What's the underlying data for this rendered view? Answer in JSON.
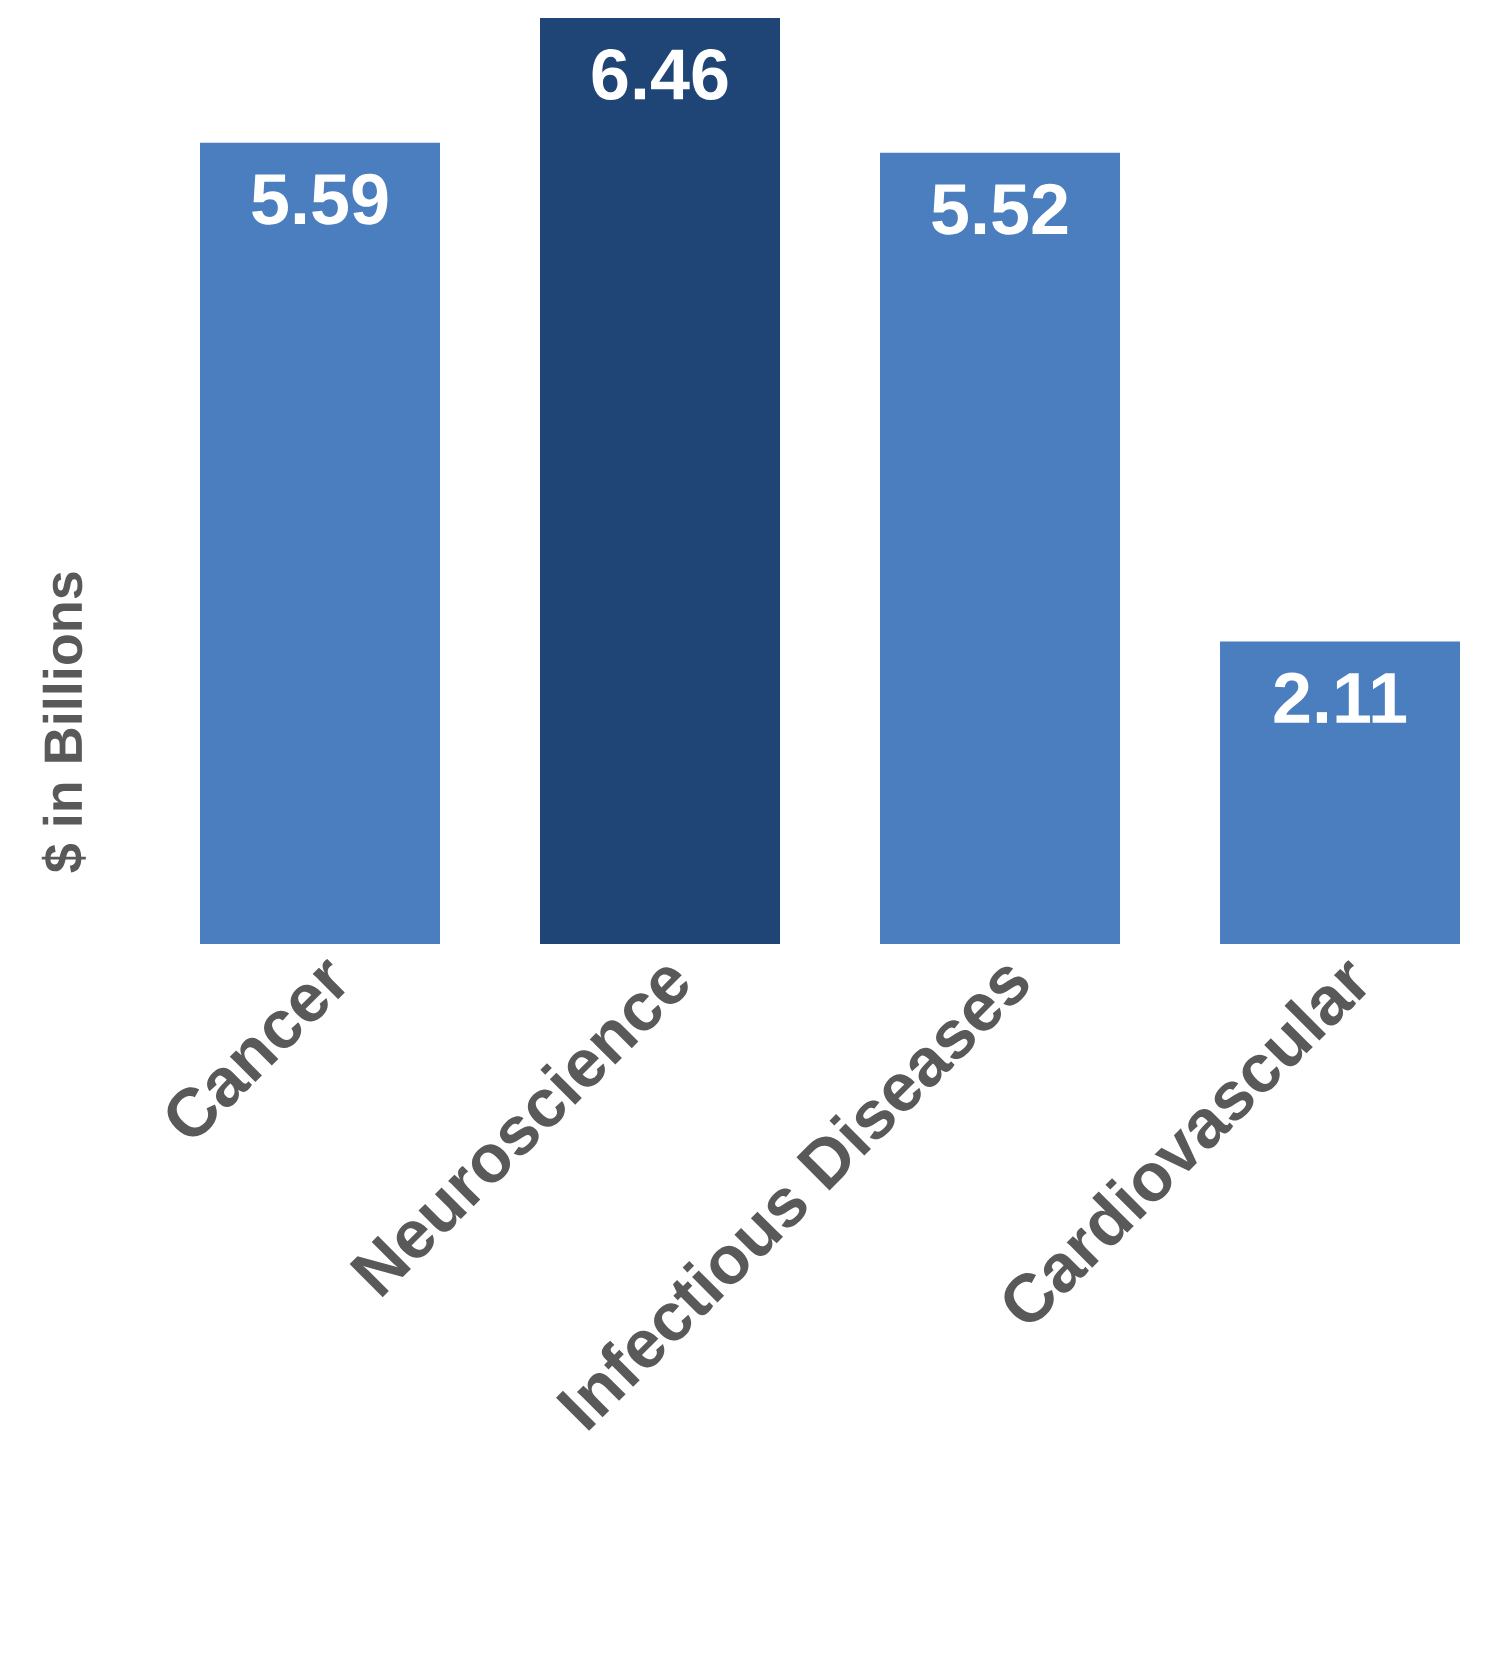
{
  "chart_data": {
    "type": "bar",
    "ylabel": "$ in Billions",
    "categories": [
      "Cancer",
      "Neuroscience",
      "Infectious Diseases",
      "Cardiovascular"
    ],
    "values": [
      5.59,
      6.46,
      5.52,
      2.11
    ],
    "colors": [
      "#4a7ebf",
      "#1f4476",
      "#4a7ebf",
      "#4a7ebf"
    ],
    "data_labels": true
  }
}
